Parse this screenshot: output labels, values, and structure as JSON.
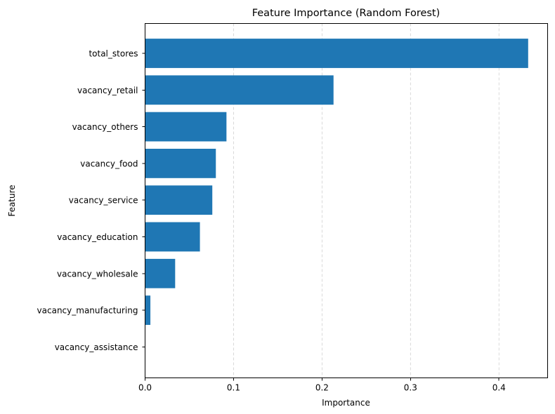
{
  "chart_data": {
    "type": "bar",
    "orientation": "horizontal",
    "title": "Feature Importance (Random Forest)",
    "xlabel": "Importance",
    "ylabel": "Feature",
    "categories": [
      "total_stores",
      "vacancy_retail",
      "vacancy_others",
      "vacancy_food",
      "vacancy_service",
      "vacancy_education",
      "vacancy_wholesale",
      "vacancy_manufacturing",
      "vacancy_assistance"
    ],
    "values": [
      0.433,
      0.213,
      0.092,
      0.08,
      0.076,
      0.062,
      0.034,
      0.006,
      0.0
    ],
    "xlim": [
      0,
      0.455
    ],
    "xticks": [
      0.0,
      0.1,
      0.2,
      0.3,
      0.4
    ],
    "xtick_labels": [
      "0.0",
      "0.1",
      "0.2",
      "0.3",
      "0.4"
    ],
    "grid": "x-dashed",
    "bar_color": "#1f77b4"
  }
}
